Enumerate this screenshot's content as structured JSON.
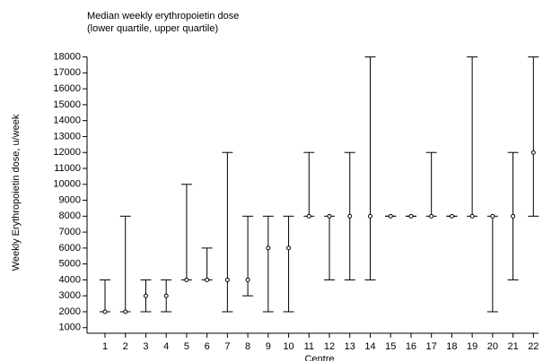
{
  "chart_data": {
    "type": "errorbar",
    "title": [
      "Median weekly erythropoietin dose",
      "(lower quartile, upper quartile)"
    ],
    "ylabel": "Weekly Erythropoietin dose, u/week",
    "xlabel": "Centre",
    "x": [
      1,
      2,
      3,
      4,
      5,
      6,
      7,
      8,
      9,
      10,
      11,
      12,
      13,
      14,
      15,
      16,
      17,
      18,
      19,
      20,
      21,
      22
    ],
    "median": [
      2000,
      2000,
      3000,
      3000,
      4000,
      4000,
      4000,
      4000,
      6000,
      6000,
      8000,
      8000,
      8000,
      8000,
      8000,
      8000,
      8000,
      8000,
      8000,
      8000,
      8000,
      12000
    ],
    "lower": [
      2000,
      2000,
      2000,
      2000,
      4000,
      4000,
      2000,
      3000,
      2000,
      2000,
      8000,
      4000,
      4000,
      4000,
      8000,
      8000,
      8000,
      8000,
      8000,
      2000,
      4000,
      8000
    ],
    "upper": [
      4000,
      8000,
      4000,
      4000,
      10000,
      6000,
      12000,
      8000,
      8000,
      8000,
      12000,
      8000,
      12000,
      18000,
      8000,
      8000,
      12000,
      8000,
      18000,
      8000,
      12000,
      18000
    ],
    "color": "#000000",
    "xlim": [
      0.12,
      22.25
    ],
    "xticks": [
      1,
      2,
      3,
      4,
      5,
      6,
      7,
      8,
      9,
      10,
      11,
      12,
      13,
      14,
      15,
      16,
      17,
      18,
      19,
      20,
      21,
      22
    ],
    "ylim": [
      650,
      18200
    ],
    "yticks": [
      1000,
      2000,
      3000,
      4000,
      5000,
      6000,
      7000,
      8000,
      9000,
      10000,
      11000,
      12000,
      13000,
      14000,
      15000,
      16000,
      17000,
      18000
    ]
  }
}
